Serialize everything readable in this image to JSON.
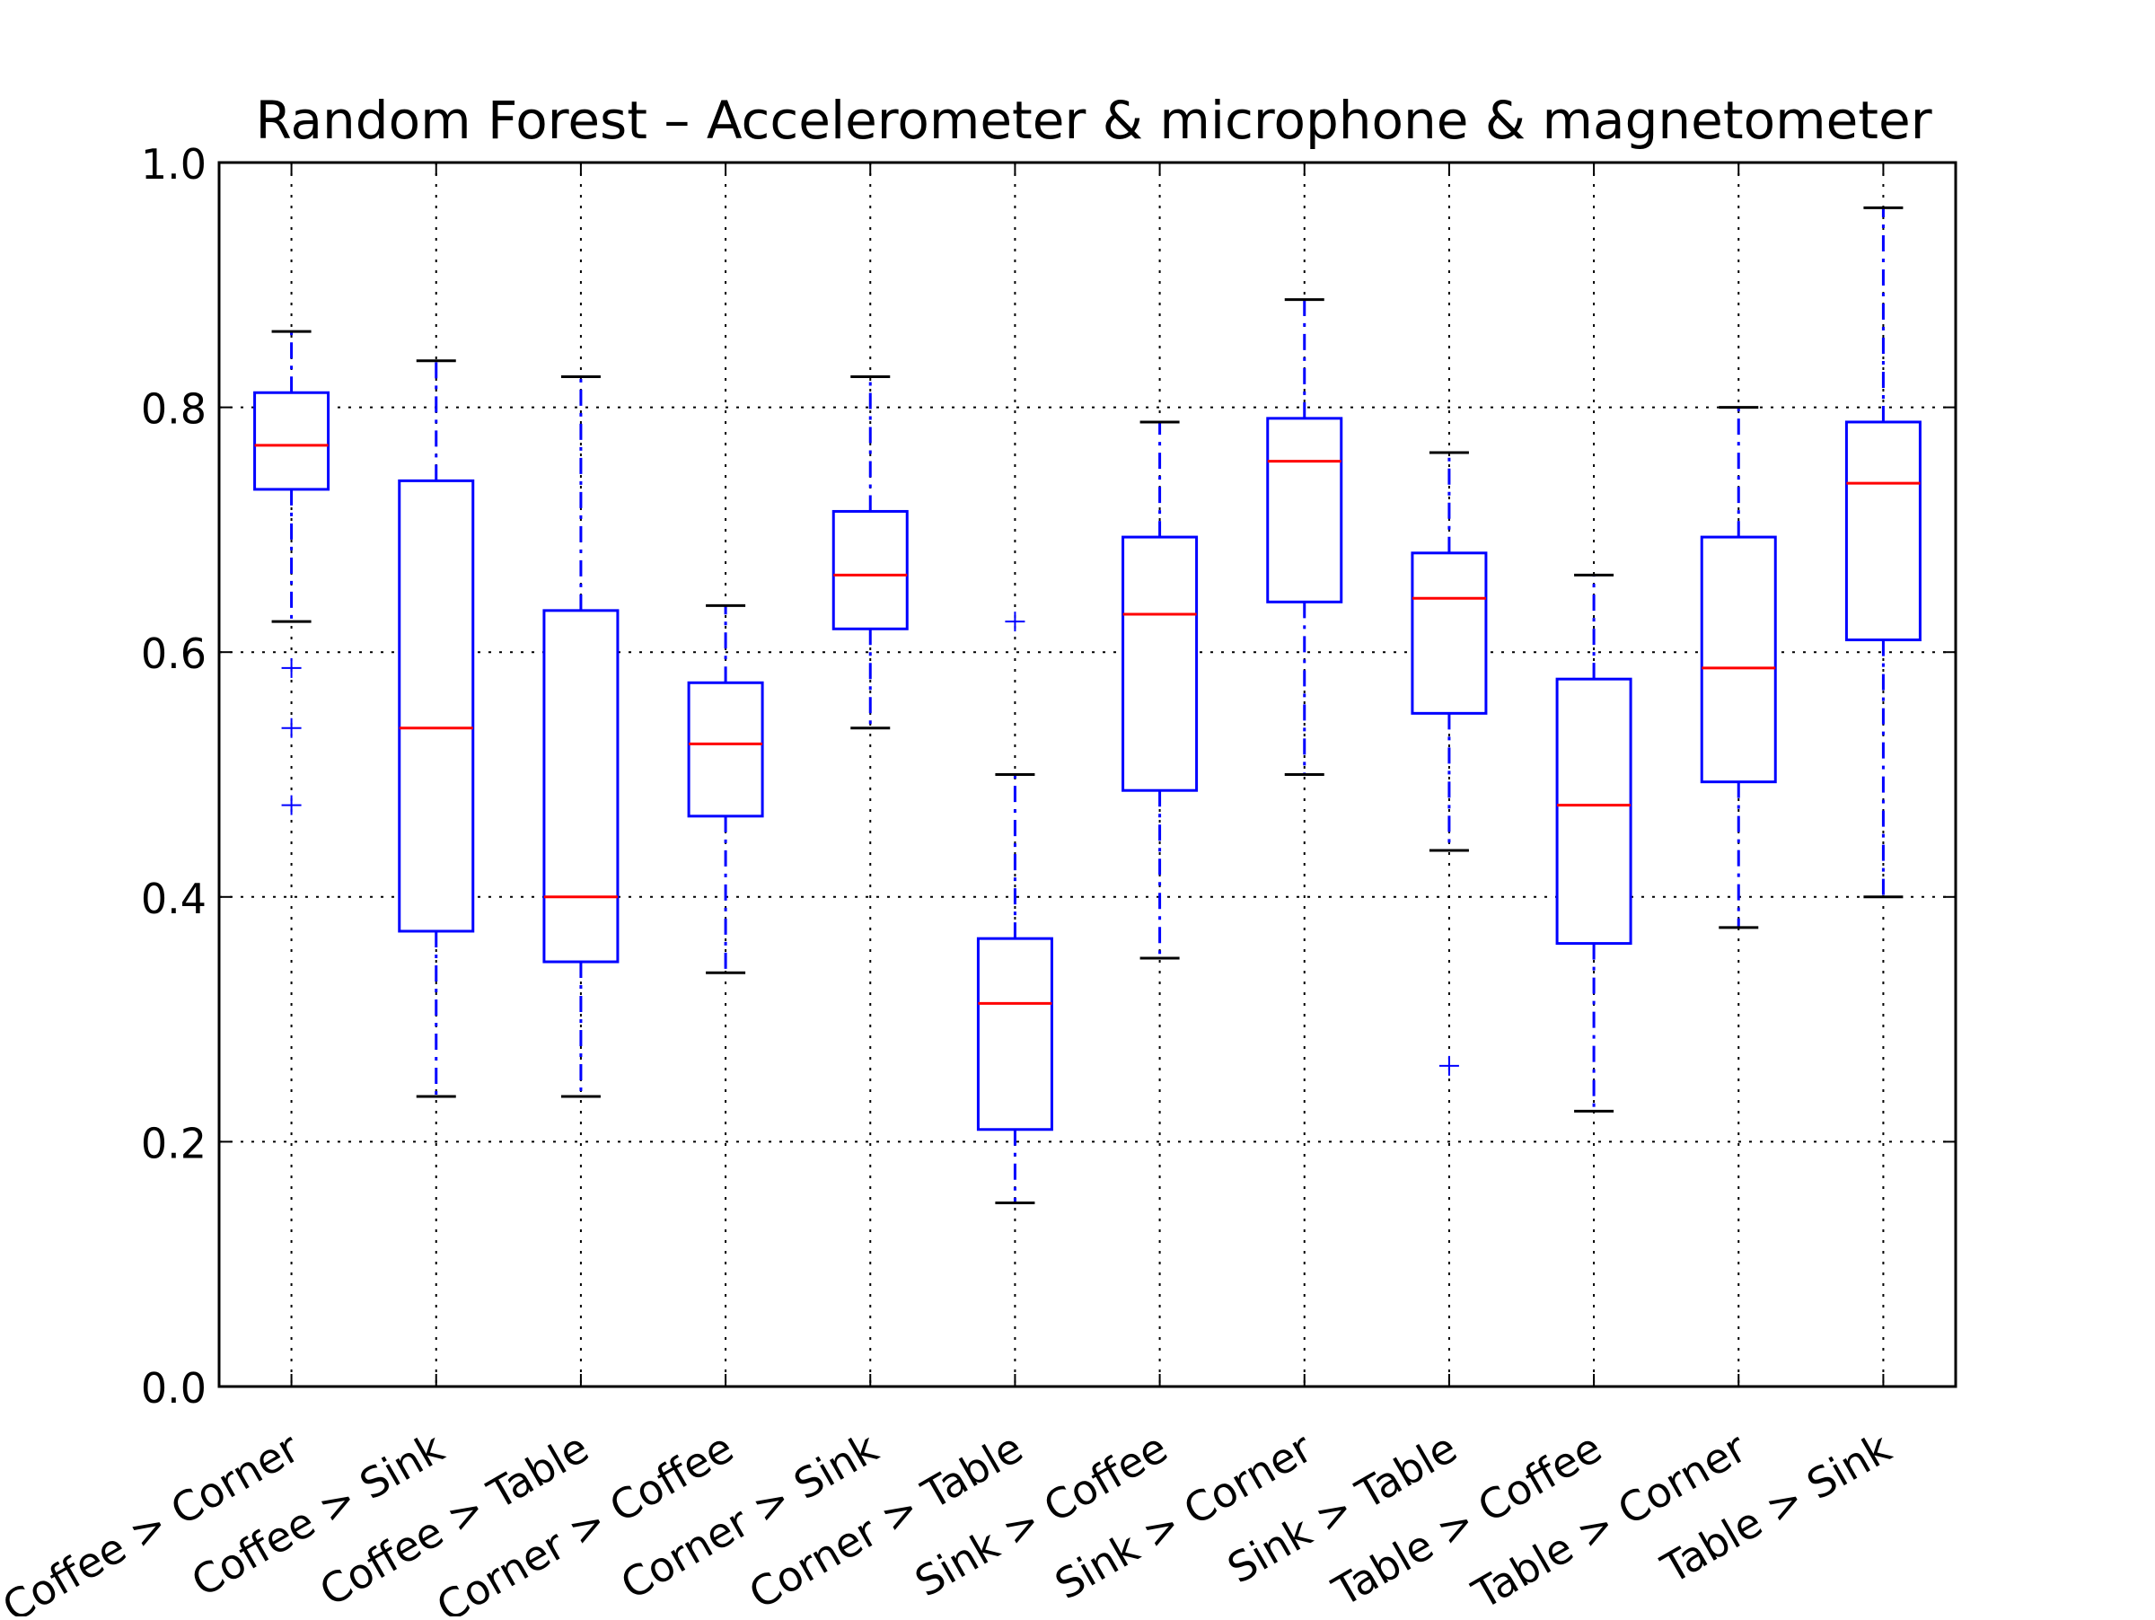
{
  "chart_data": {
    "type": "boxplot",
    "title": "Random Forest – Accelerometer & microphone & magnetometer",
    "xlabel": "",
    "ylabel": "",
    "ylim": [
      0.0,
      1.0
    ],
    "yticks": [
      "0.0",
      "0.2",
      "0.4",
      "0.6",
      "0.8",
      "1.0"
    ],
    "grid": true,
    "categories": [
      "Coffee > Corner",
      "Coffee > Sink",
      "Coffee > Table",
      "Corner > Coffee",
      "Corner > Sink",
      "Corner > Table",
      "Sink > Coffee",
      "Sink > Corner",
      "Sink > Table",
      "Table > Coffee",
      "Table > Corner",
      "Table > Sink"
    ],
    "boxes": [
      {
        "whisker_low": 0.625,
        "q1": 0.733,
        "median": 0.769,
        "q3": 0.812,
        "whisker_high": 0.862,
        "outliers": [
          0.587,
          0.538,
          0.475
        ]
      },
      {
        "whisker_low": 0.237,
        "q1": 0.372,
        "median": 0.538,
        "q3": 0.74,
        "whisker_high": 0.838,
        "outliers": []
      },
      {
        "whisker_low": 0.237,
        "q1": 0.347,
        "median": 0.4,
        "q3": 0.634,
        "whisker_high": 0.825,
        "outliers": []
      },
      {
        "whisker_low": 0.338,
        "q1": 0.466,
        "median": 0.525,
        "q3": 0.575,
        "whisker_high": 0.638,
        "outliers": []
      },
      {
        "whisker_low": 0.538,
        "q1": 0.619,
        "median": 0.663,
        "q3": 0.715,
        "whisker_high": 0.825,
        "outliers": []
      },
      {
        "whisker_low": 0.15,
        "q1": 0.21,
        "median": 0.313,
        "q3": 0.366,
        "whisker_high": 0.5,
        "outliers": [
          0.625
        ]
      },
      {
        "whisker_low": 0.35,
        "q1": 0.487,
        "median": 0.631,
        "q3": 0.694,
        "whisker_high": 0.788,
        "outliers": []
      },
      {
        "whisker_low": 0.5,
        "q1": 0.641,
        "median": 0.756,
        "q3": 0.791,
        "whisker_high": 0.888,
        "outliers": []
      },
      {
        "whisker_low": 0.438,
        "q1": 0.55,
        "median": 0.644,
        "q3": 0.681,
        "whisker_high": 0.763,
        "outliers": [
          0.262
        ]
      },
      {
        "whisker_low": 0.225,
        "q1": 0.362,
        "median": 0.475,
        "q3": 0.578,
        "whisker_high": 0.663,
        "outliers": []
      },
      {
        "whisker_low": 0.375,
        "q1": 0.494,
        "median": 0.587,
        "q3": 0.694,
        "whisker_high": 0.8,
        "outliers": []
      },
      {
        "whisker_low": 0.4,
        "q1": 0.61,
        "median": 0.738,
        "q3": 0.788,
        "whisker_high": 0.963,
        "outliers": []
      }
    ],
    "colors": {
      "box": "#0000ff",
      "whisker": "#0000ff",
      "cap": "#000000",
      "median": "#ff0000",
      "outlier": "#0000ff",
      "grid": "#000000",
      "axes": "#000000"
    }
  }
}
